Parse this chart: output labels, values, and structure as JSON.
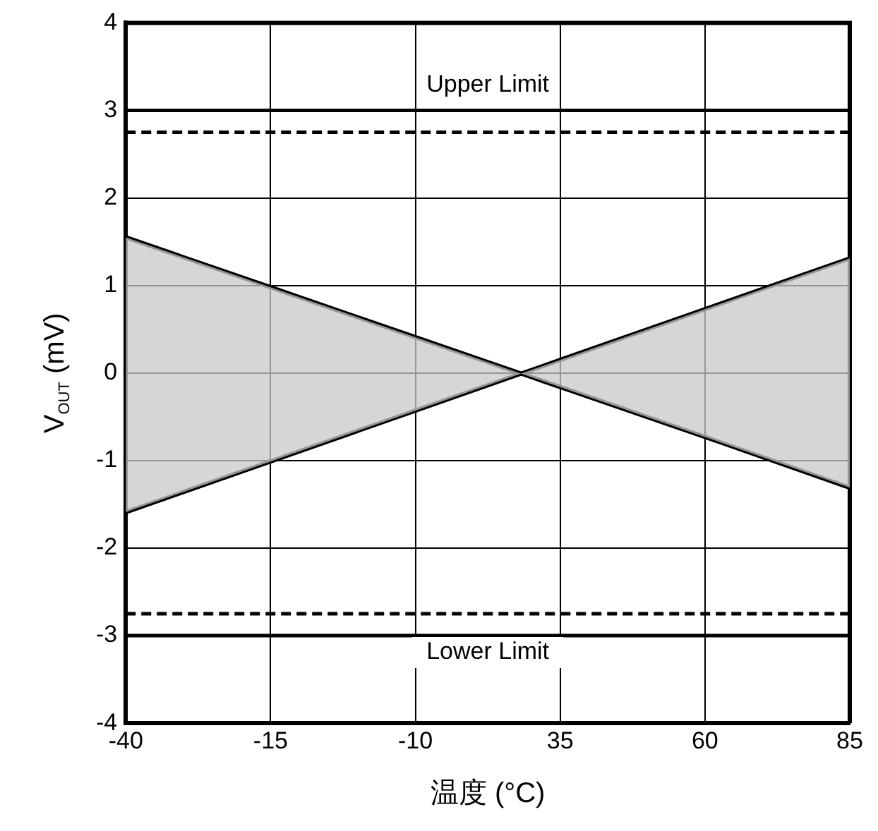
{
  "chart_data": {
    "type": "line",
    "xlabel": "温度 (°C)",
    "ylabel": "V$_{OUT}$ (mV)",
    "categories": [
      "-40",
      "-15",
      "-10",
      "35",
      "60",
      "85"
    ],
    "series": [
      {
        "color": "#000000",
        "values": [
          1.55,
          0.98,
          0.41,
          -0.16,
          -0.73,
          -1.31
        ],
        "lower": [
          -1.59,
          -1.01,
          -0.43,
          0.15,
          0.73,
          1.31
        ],
        "upper": [
          1.55,
          0.98,
          0.41,
          -0.16,
          -0.73,
          -1.31
        ]
      },
      {
        "color": "#000000",
        "values": [
          -1.59,
          -1.01,
          -0.43,
          0.15,
          0.73,
          1.31
        ]
      }
    ],
    "ylim": [
      -4,
      4
    ],
    "yticks": [
      -4,
      -3,
      -2,
      -1,
      0,
      1,
      2,
      3,
      4
    ],
    "ref_lines": [
      {
        "axis": "y",
        "value": 3,
        "label": "Upper Limit",
        "line_style": "solid"
      },
      {
        "axis": "y",
        "value": 2.75,
        "line_style": "dashed"
      },
      {
        "axis": "y",
        "value": -2.75,
        "line_style": "dashed"
      },
      {
        "axis": "y",
        "value": -3,
        "label": "Lower Limit",
        "line_style": "solid"
      }
    ],
    "grid": true,
    "legend": false,
    "marker": "none",
    "line_style": "solid"
  }
}
